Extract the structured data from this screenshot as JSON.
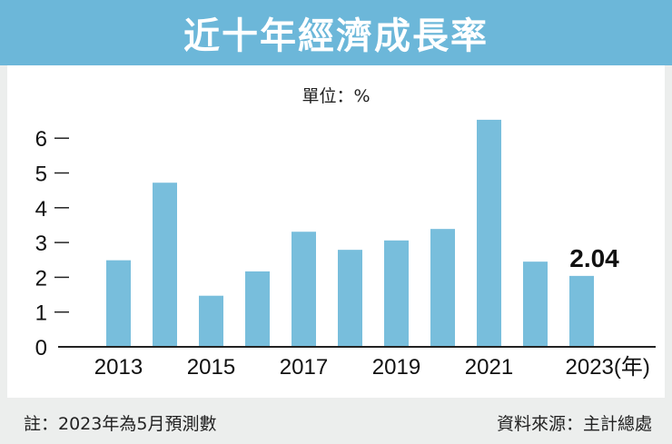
{
  "chart_data": {
    "type": "bar",
    "title": "近十年經濟成長率",
    "unit_label": "單位：%",
    "categories": [
      "2013",
      "2014",
      "2015",
      "2016",
      "2017",
      "2018",
      "2019",
      "2020",
      "2021",
      "2022",
      "2023"
    ],
    "values": [
      2.49,
      4.72,
      1.47,
      2.17,
      3.31,
      2.79,
      3.06,
      3.39,
      6.53,
      2.45,
      2.04
    ],
    "x_tick_labels": [
      "2013",
      "2015",
      "2017",
      "2019",
      "2021",
      "2023(年)"
    ],
    "x_tick_indices": [
      0,
      2,
      4,
      6,
      8,
      10
    ],
    "y_ticks": [
      "0",
      "1",
      "2",
      "3",
      "4",
      "5",
      "6"
    ],
    "ylim": [
      0,
      6.6
    ],
    "data_labels": [
      {
        "index": 10,
        "text": "2.04"
      }
    ],
    "grid": false,
    "bar_color": "#78bedc"
  },
  "footer": {
    "note": "註：2023年為5月預測數",
    "source": "資料來源：主計總處"
  },
  "colors": {
    "title_bar": "#6cb7d9",
    "footer_bg": "#eceeed"
  }
}
